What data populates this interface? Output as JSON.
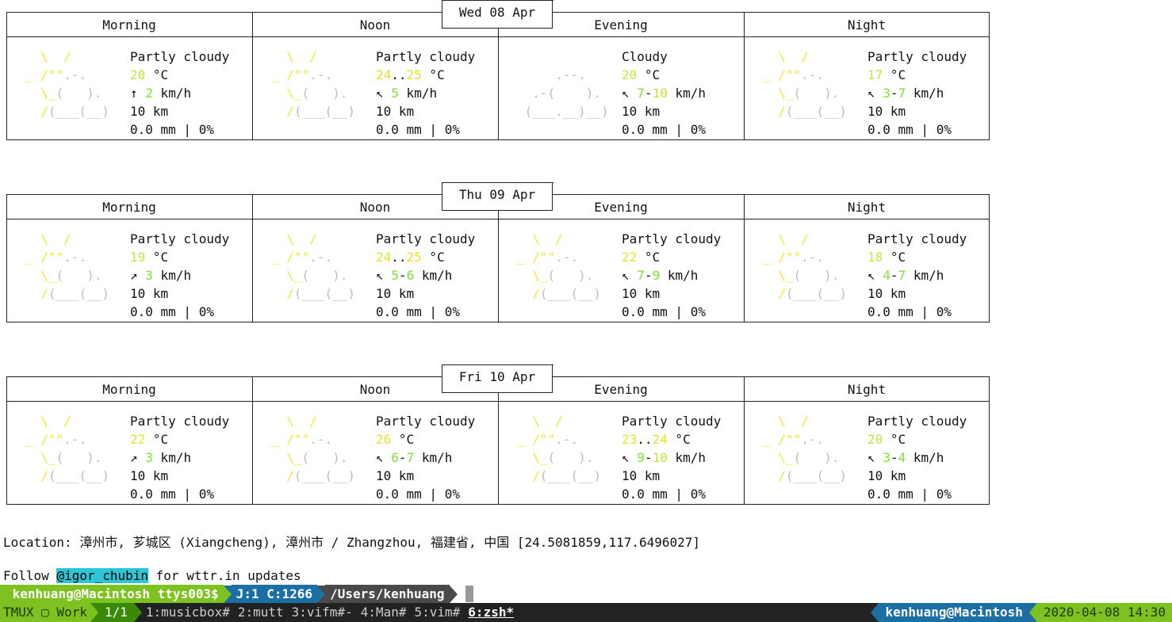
{
  "days": [
    {
      "date": "Wed 08 Apr",
      "periods": [
        {
          "name": "Morning",
          "icon": "partly-cloudy",
          "condition": "Partly cloudy",
          "temp": [
            {
              "v": "20",
              "c": "gy"
            }
          ],
          "wind_dir": "↑",
          "wind": [
            {
              "v": "2",
              "c": "gr"
            }
          ],
          "visibility": "10 km",
          "precip": "0.0 mm | 0%"
        },
        {
          "name": "Noon",
          "icon": "partly-cloudy",
          "condition": "Partly cloudy",
          "temp": [
            {
              "v": "24",
              "c": "y"
            },
            {
              "v": "..",
              "c": ""
            },
            {
              "v": "25",
              "c": "y"
            }
          ],
          "wind_dir": "↖",
          "wind": [
            {
              "v": "5",
              "c": "gr"
            }
          ],
          "visibility": "10 km",
          "precip": "0.0 mm | 0%"
        },
        {
          "name": "Evening",
          "icon": "cloudy",
          "condition": "Cloudy",
          "temp": [
            {
              "v": "20",
              "c": "gy"
            }
          ],
          "wind_dir": "↖",
          "wind": [
            {
              "v": "7",
              "c": "gr"
            },
            {
              "v": "-",
              "c": ""
            },
            {
              "v": "10",
              "c": "gy"
            }
          ],
          "visibility": "10 km",
          "precip": "0.0 mm | 0%"
        },
        {
          "name": "Night",
          "icon": "partly-cloudy",
          "condition": "Partly cloudy",
          "temp": [
            {
              "v": "17",
              "c": "gy"
            }
          ],
          "wind_dir": "↖",
          "wind": [
            {
              "v": "3",
              "c": "gr"
            },
            {
              "v": "-",
              "c": ""
            },
            {
              "v": "7",
              "c": "gr"
            }
          ],
          "visibility": "10 km",
          "precip": "0.0 mm | 0%"
        }
      ]
    },
    {
      "date": "Thu 09 Apr",
      "periods": [
        {
          "name": "Morning",
          "icon": "partly-cloudy",
          "condition": "Partly cloudy",
          "temp": [
            {
              "v": "19",
              "c": "gy"
            }
          ],
          "wind_dir": "↗",
          "wind": [
            {
              "v": "3",
              "c": "gr"
            }
          ],
          "visibility": "10 km",
          "precip": "0.0 mm | 0%"
        },
        {
          "name": "Noon",
          "icon": "partly-cloudy",
          "condition": "Partly cloudy",
          "temp": [
            {
              "v": "24",
              "c": "y"
            },
            {
              "v": "..",
              "c": ""
            },
            {
              "v": "25",
              "c": "y"
            }
          ],
          "wind_dir": "↖",
          "wind": [
            {
              "v": "5",
              "c": "gr"
            },
            {
              "v": "-",
              "c": ""
            },
            {
              "v": "6",
              "c": "gr"
            }
          ],
          "visibility": "10 km",
          "precip": "0.0 mm | 0%"
        },
        {
          "name": "Evening",
          "icon": "partly-cloudy",
          "condition": "Partly cloudy",
          "temp": [
            {
              "v": "22",
              "c": "y"
            }
          ],
          "wind_dir": "↖",
          "wind": [
            {
              "v": "7",
              "c": "gr"
            },
            {
              "v": "-",
              "c": ""
            },
            {
              "v": "9",
              "c": "gr"
            }
          ],
          "visibility": "10 km",
          "precip": "0.0 mm | 0%"
        },
        {
          "name": "Night",
          "icon": "partly-cloudy",
          "condition": "Partly cloudy",
          "temp": [
            {
              "v": "18",
              "c": "gy"
            }
          ],
          "wind_dir": "↖",
          "wind": [
            {
              "v": "4",
              "c": "gr"
            },
            {
              "v": "-",
              "c": ""
            },
            {
              "v": "7",
              "c": "gr"
            }
          ],
          "visibility": "10 km",
          "precip": "0.0 mm | 0%"
        }
      ]
    },
    {
      "date": "Fri 10 Apr",
      "periods": [
        {
          "name": "Morning",
          "icon": "partly-cloudy",
          "condition": "Partly cloudy",
          "temp": [
            {
              "v": "22",
              "c": "y"
            }
          ],
          "wind_dir": "↗",
          "wind": [
            {
              "v": "3",
              "c": "gr"
            }
          ],
          "visibility": "10 km",
          "precip": "0.0 mm | 0%"
        },
        {
          "name": "Noon",
          "icon": "partly-cloudy",
          "condition": "Partly cloudy",
          "temp": [
            {
              "v": "26",
              "c": "y"
            }
          ],
          "wind_dir": "↖",
          "wind": [
            {
              "v": "6",
              "c": "gr"
            },
            {
              "v": "-",
              "c": ""
            },
            {
              "v": "7",
              "c": "gr"
            }
          ],
          "visibility": "10 km",
          "precip": "0.0 mm | 0%"
        },
        {
          "name": "Evening",
          "icon": "partly-cloudy",
          "condition": "Partly cloudy",
          "temp": [
            {
              "v": "23",
              "c": "y"
            },
            {
              "v": "..",
              "c": ""
            },
            {
              "v": "24",
              "c": "y"
            }
          ],
          "wind_dir": "↖",
          "wind": [
            {
              "v": "9",
              "c": "gr"
            },
            {
              "v": "-",
              "c": ""
            },
            {
              "v": "10",
              "c": "gy"
            }
          ],
          "visibility": "10 km",
          "precip": "0.0 mm | 0%"
        },
        {
          "name": "Night",
          "icon": "partly-cloudy",
          "condition": "Partly cloudy",
          "temp": [
            {
              "v": "20",
              "c": "gy"
            }
          ],
          "wind_dir": "↖",
          "wind": [
            {
              "v": "3",
              "c": "gr"
            },
            {
              "v": "-",
              "c": ""
            },
            {
              "v": "4",
              "c": "gr"
            }
          ],
          "visibility": "10 km",
          "precip": "0.0 mm | 0%"
        }
      ]
    }
  ],
  "temp_unit": " °C",
  "wind_unit": " km/h",
  "location": "Location: 漳州市, 芗城区 (Xiangcheng), 漳州市 / Zhangzhou, 福建省, 中国 [24.5081859,117.6496027]",
  "follow": {
    "prefix": "Follow ",
    "handle": "@igor_chubin",
    "suffix": " for wttr.in updates"
  },
  "prompt": {
    "apple_icon": "",
    "user_host": "kenhuang@Macintosh ttys003$",
    "jobs": "J:1 C:1266",
    "path": "/Users/kenhuang"
  },
  "tmux": {
    "session": "TMUX ▢ Work",
    "pane": "1/1",
    "windows": [
      {
        "label": "1:musicbox#",
        "active": false
      },
      {
        "label": "2:mutt",
        "active": false
      },
      {
        "label": "3:vifm#-",
        "active": false
      },
      {
        "label": "4:Man#",
        "active": false
      },
      {
        "label": "5:vim#",
        "active": false
      },
      {
        "label": "6:zsh*",
        "active": true
      }
    ],
    "host": "kenhuang@Macintosh",
    "datetime": "2020-04-08 14:30"
  },
  "colors": {
    "sun": "#f1ea3a",
    "cloud": "#bdbdbd",
    "temp_warm": "#e8e22a",
    "green": "#7fe23c",
    "prompt_green": "#7ec222",
    "prompt_blue": "#1c6fa3",
    "link_bg": "#2ec5d6"
  }
}
